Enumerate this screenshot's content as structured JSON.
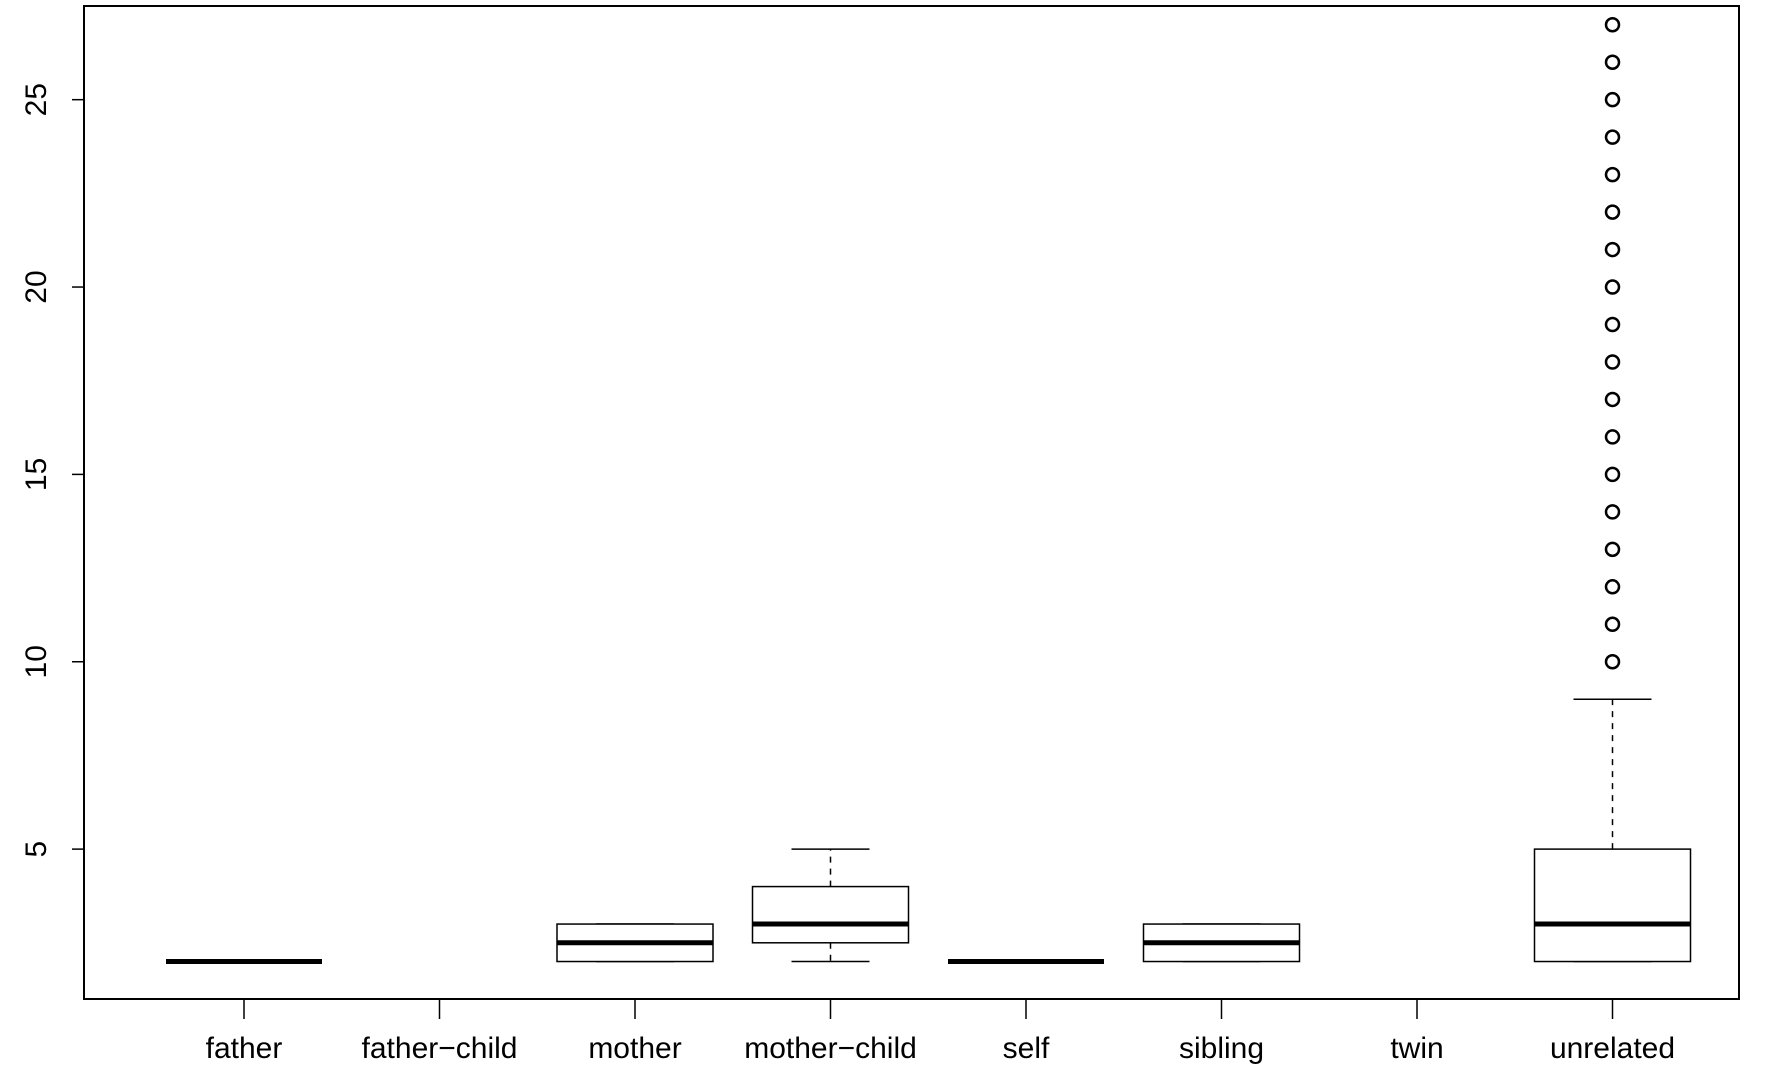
{
  "chart_data": {
    "type": "boxplot",
    "title": "",
    "xlabel": "",
    "ylabel": "",
    "ylim": [
      1,
      27.5
    ],
    "yticks": [
      5,
      10,
      15,
      20,
      25
    ],
    "categories": [
      "father",
      "father−child",
      "mother",
      "mother−child",
      "self",
      "sibling",
      "twin",
      "unrelated"
    ],
    "boxes": [
      {
        "category": "father",
        "whisker_low": 2,
        "q1": 2,
        "median": 2,
        "q3": 2,
        "whisker_high": 2,
        "outliers": []
      },
      {
        "category": "father−child",
        "whisker_low": null,
        "q1": null,
        "median": null,
        "q3": null,
        "whisker_high": null,
        "outliers": []
      },
      {
        "category": "mother",
        "whisker_low": 2,
        "q1": 2,
        "median": 2.5,
        "q3": 3,
        "whisker_high": 3,
        "outliers": []
      },
      {
        "category": "mother−child",
        "whisker_low": 2,
        "q1": 2.5,
        "median": 3,
        "q3": 4,
        "whisker_high": 5,
        "outliers": []
      },
      {
        "category": "self",
        "whisker_low": 2,
        "q1": 2,
        "median": 2,
        "q3": 2,
        "whisker_high": 2,
        "outliers": []
      },
      {
        "category": "sibling",
        "whisker_low": 2,
        "q1": 2,
        "median": 2.5,
        "q3": 3,
        "whisker_high": 3,
        "outliers": []
      },
      {
        "category": "twin",
        "whisker_low": null,
        "q1": null,
        "median": null,
        "q3": null,
        "whisker_high": null,
        "outliers": []
      },
      {
        "category": "unrelated",
        "whisker_low": 2,
        "q1": 2,
        "median": 3,
        "q3": 5,
        "whisker_high": 9,
        "outliers": [
          10,
          11,
          12,
          13,
          14,
          15,
          16,
          17,
          18,
          19,
          20,
          21,
          22,
          23,
          24,
          25,
          26,
          27
        ]
      }
    ],
    "grid": false,
    "legend": "none"
  }
}
